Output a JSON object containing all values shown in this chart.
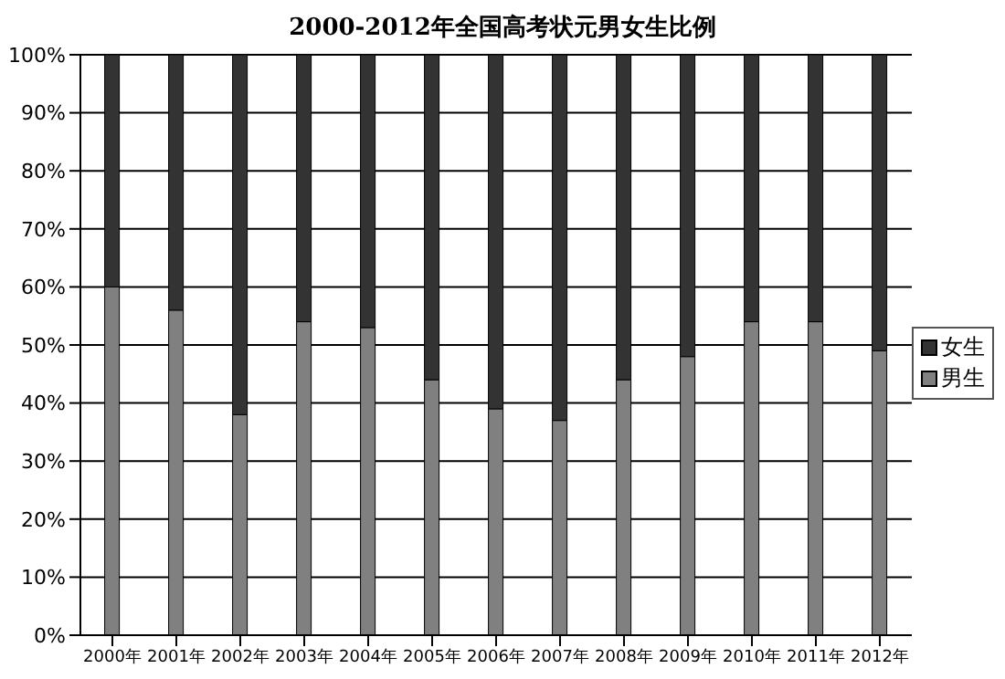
{
  "chart_data": {
    "type": "bar",
    "title": "2000-2012年全国高考状元男女生比例",
    "stacked": true,
    "categories": [
      "2000年",
      "2001年",
      "2002年",
      "2003年",
      "2004年",
      "2005年",
      "2006年",
      "2007年",
      "2008年",
      "2009年",
      "2010年",
      "2011年",
      "2012年"
    ],
    "series": [
      {
        "name": "男生",
        "color": "#808080",
        "values": [
          60,
          56,
          38,
          54,
          53,
          44,
          39,
          37,
          44,
          48,
          54,
          54,
          49
        ]
      },
      {
        "name": "女生",
        "color": "#333333",
        "values": [
          40,
          44,
          62,
          46,
          47,
          56,
          61,
          63,
          56,
          52,
          46,
          46,
          51
        ]
      }
    ],
    "ylim": [
      0,
      100
    ],
    "yticks": [
      {
        "value": 0,
        "label": "0%"
      },
      {
        "value": 10,
        "label": "10%"
      },
      {
        "value": 20,
        "label": "20%"
      },
      {
        "value": 30,
        "label": "30%"
      },
      {
        "value": 40,
        "label": "40%"
      },
      {
        "value": 50,
        "label": "50%"
      },
      {
        "value": 60,
        "label": "60%"
      },
      {
        "value": 70,
        "label": "70%"
      },
      {
        "value": 80,
        "label": "80%"
      },
      {
        "value": 90,
        "label": "90%"
      },
      {
        "value": 100,
        "label": "100%"
      }
    ],
    "grid": "y",
    "legend": "right"
  }
}
